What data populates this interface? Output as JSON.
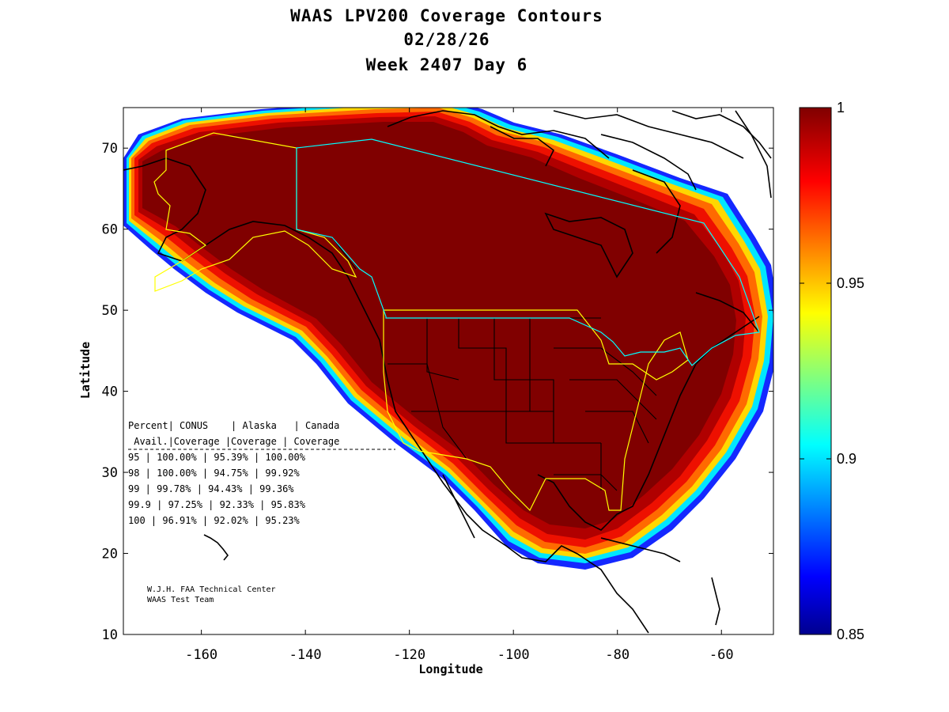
{
  "title": {
    "line1": "WAAS LPV200 Coverage Contours",
    "line2": "02/28/26",
    "line3": "Week 2407 Day 6"
  },
  "colors": {
    "ocean": "#ffffff",
    "coverage_max": "#800000",
    "coastline": "#000000",
    "service_area_conus": "#ffff00",
    "service_area_canada": "#00ffff"
  },
  "chart_data": {
    "type": "heatmap",
    "title": "WAAS LPV200 Coverage Contours",
    "subtitle": [
      "02/28/26",
      "Week 2407 Day 6"
    ],
    "xlabel": "Longitude",
    "ylabel": "Latitude",
    "xlim": [
      -175,
      -50
    ],
    "ylim": [
      10,
      75
    ],
    "x_ticks": [
      "-160",
      "-140",
      "-120",
      "-100",
      "-80",
      "-60"
    ],
    "y_ticks": [
      "10",
      "20",
      "30",
      "40",
      "50",
      "60",
      "70"
    ],
    "colorbar": {
      "min": 0.85,
      "max": 1,
      "colormap": "jet",
      "tick_labels": [
        "1",
        "0.95",
        "0.9",
        "0.85"
      ]
    },
    "coverage_table": {
      "header1": [
        "Percent",
        "CONUS",
        "Alaska",
        "Canada"
      ],
      "header2": [
        "Avail.",
        "Coverage",
        "Coverage",
        "Coverage"
      ],
      "rows": [
        {
          "percent": "95",
          "conus": "100.00%",
          "alaska": "95.39%",
          "canada": "100.00%"
        },
        {
          "percent": "98",
          "conus": "100.00%",
          "alaska": "94.75%",
          "canada": "99.92%"
        },
        {
          "percent": "99",
          "conus": "99.78%",
          "alaska": "94.43%",
          "canada": "99.36%"
        },
        {
          "percent": "99.9",
          "conus": "97.25%",
          "alaska": "92.33%",
          "canada": "95.83%"
        },
        {
          "percent": "100",
          "conus": "96.91%",
          "alaska": "92.02%",
          "canada": "95.23%"
        }
      ]
    },
    "credits": [
      "W.J.H. FAA Technical Center",
      "WAAS Test Team"
    ]
  }
}
